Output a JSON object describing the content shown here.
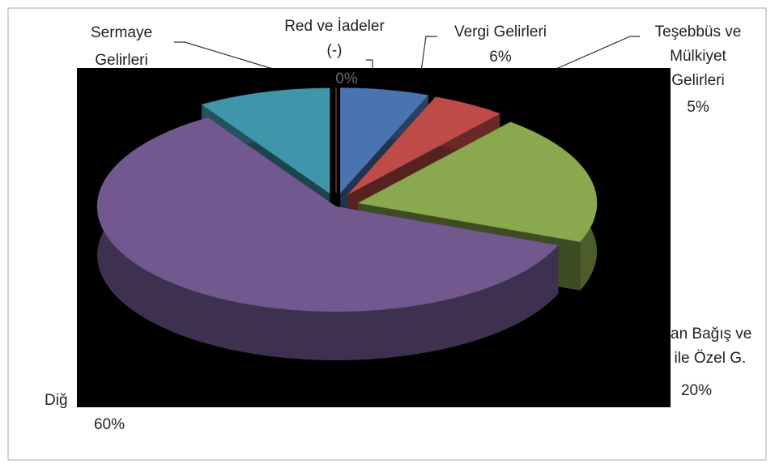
{
  "chart_data": {
    "type": "pie3d",
    "labels": [
      [
        "Red ve İadeler",
        "(-)"
      ],
      [
        "Vergi Gelirleri"
      ],
      [
        "Teşebbüs ve",
        "Mülkiyet",
        "Gelirleri"
      ],
      [
        "an Bağış ve",
        ". ile Özel G."
      ],
      [
        "Diğ"
      ],
      [
        "Sermaye",
        "Gelirleri"
      ]
    ],
    "values": [
      0,
      6,
      5,
      20,
      60,
      9
    ],
    "value_labels": [
      "0%",
      "6%",
      "5%",
      "20%",
      "60%",
      null
    ],
    "colors": [
      "#f79646",
      "#4a74b0",
      "#be4b48",
      "#8aa84e",
      "#71588f",
      "#3f96aa"
    ]
  }
}
